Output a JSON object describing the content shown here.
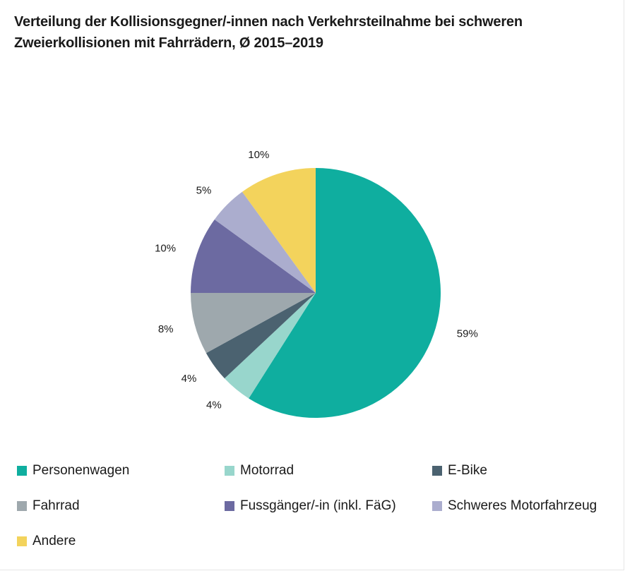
{
  "chart_data": {
    "type": "pie",
    "title_lines": [
      "Verteilung der Kollisionsgegner/-innen nach Verkehrsteilnahme bei schweren",
      "Zweierkollisionen mit Fahrrädern, Ø 2015–2019"
    ],
    "slices": [
      {
        "name": "Personenwagen",
        "value": 59,
        "label": "59%",
        "color": "#0fae9f"
      },
      {
        "name": "Motorrad",
        "value": 4,
        "label": "4%",
        "color": "#98d6cc"
      },
      {
        "name": "E-Bike",
        "value": 4,
        "label": "4%",
        "color": "#4b6270"
      },
      {
        "name": "Fahrrad",
        "value": 8,
        "label": "8%",
        "color": "#9ea8ad"
      },
      {
        "name": "Fussgänger/-in (inkl. FäG)",
        "value": 10,
        "label": "10%",
        "color": "#6c6aa1"
      },
      {
        "name": "Schweres Motorfahrzeug",
        "value": 5,
        "label": "5%",
        "color": "#abadce"
      },
      {
        "name": "Andere",
        "value": 10,
        "label": "10%",
        "color": "#f3d35c"
      }
    ],
    "start_angle": "12 o'clock",
    "direction": "clockwise",
    "legend_placement": "bottom"
  }
}
